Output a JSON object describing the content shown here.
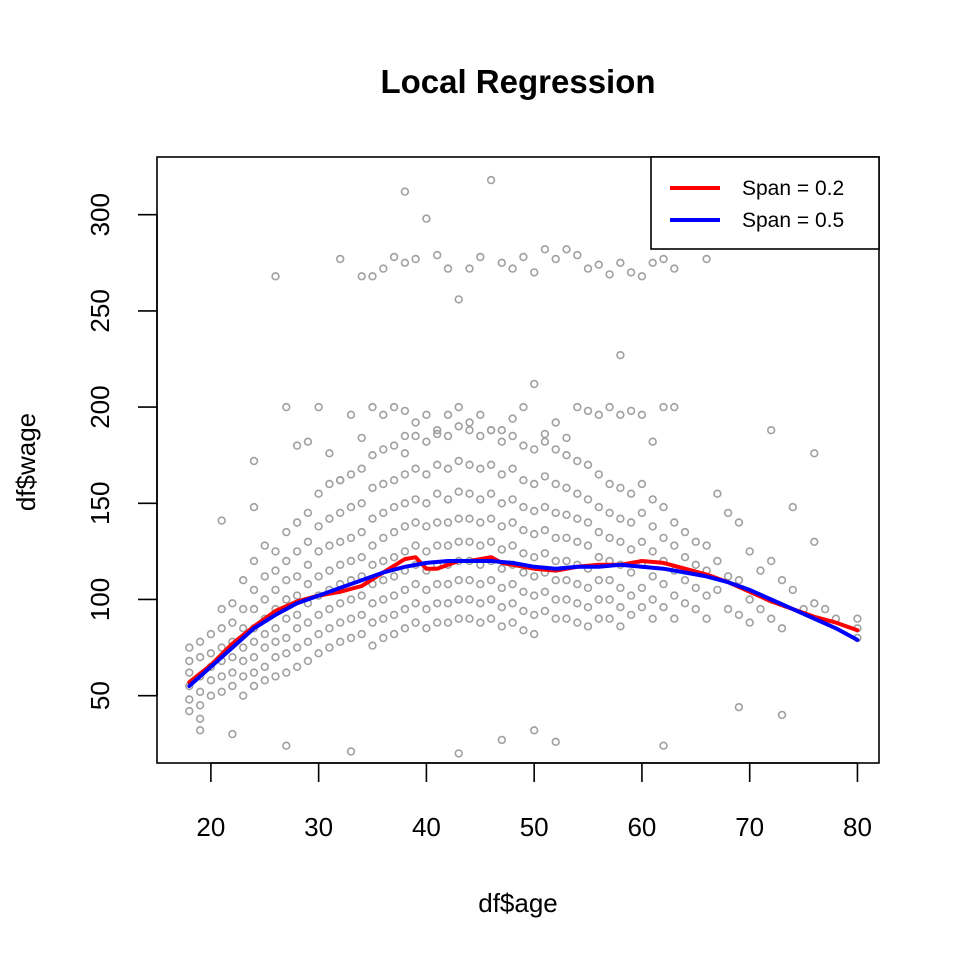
{
  "chart_data": {
    "type": "scatter",
    "title": "Local Regression",
    "xlabel": "df$age",
    "ylabel": "df$wage",
    "xlim": [
      15,
      82
    ],
    "ylim": [
      15,
      330
    ],
    "x_ticks": [
      20,
      30,
      40,
      50,
      60,
      70,
      80
    ],
    "y_ticks": [
      50,
      100,
      150,
      200,
      250,
      300
    ],
    "grid": false,
    "legend_position": "top-right",
    "point_color": "#a0a0a0",
    "series": [
      {
        "name": "Span = 0.2",
        "type": "line",
        "color": "#ff0000",
        "x": [
          18,
          20,
          22,
          24,
          26,
          28,
          30,
          32,
          34,
          36,
          38,
          39,
          40,
          41,
          42,
          43,
          44,
          45,
          46,
          47,
          48,
          50,
          52,
          54,
          56,
          58,
          60,
          62,
          64,
          66,
          68,
          70,
          72,
          74,
          76,
          78,
          80
        ],
        "y": [
          57,
          66,
          77,
          86,
          94,
          99,
          102,
          104,
          107,
          114,
          121,
          122,
          116,
          116,
          118,
          120,
          120,
          121,
          122,
          119,
          118,
          116,
          115,
          117,
          118,
          118,
          120,
          119,
          116,
          113,
          109,
          104,
          99,
          95,
          91,
          88,
          84
        ]
      },
      {
        "name": "Span = 0.5",
        "type": "line",
        "color": "#0000ff",
        "x": [
          18,
          20,
          22,
          24,
          26,
          28,
          30,
          32,
          34,
          36,
          38,
          40,
          42,
          44,
          46,
          48,
          50,
          52,
          54,
          56,
          58,
          60,
          62,
          64,
          66,
          68,
          70,
          72,
          74,
          76,
          78,
          80
        ],
        "y": [
          55,
          65,
          75,
          85,
          92,
          98,
          102,
          106,
          110,
          114,
          117,
          119,
          120,
          120,
          120,
          119,
          117,
          116,
          117,
          117,
          118,
          117,
          116,
          114,
          112,
          109,
          105,
          100,
          95,
          90,
          85,
          79
        ]
      }
    ],
    "scatter_points": {
      "x": [
        18,
        18,
        18,
        18,
        18,
        18,
        19,
        19,
        19,
        19,
        19,
        19,
        20,
        20,
        20,
        20,
        20,
        21,
        21,
        21,
        21,
        21,
        21,
        22,
        22,
        22,
        22,
        22,
        22,
        23,
        23,
        23,
        23,
        23,
        23,
        23,
        24,
        24,
        24,
        24,
        24,
        24,
        24,
        24,
        25,
        25,
        25,
        25,
        25,
        25,
        25,
        25,
        26,
        26,
        26,
        26,
        26,
        26,
        26,
        26,
        27,
        27,
        27,
        27,
        27,
        27,
        27,
        27,
        28,
        28,
        28,
        28,
        28,
        28,
        28,
        28,
        29,
        29,
        29,
        29,
        29,
        29,
        29,
        29,
        30,
        30,
        30,
        30,
        30,
        30,
        30,
        30,
        31,
        31,
        31,
        31,
        31,
        31,
        31,
        31,
        32,
        32,
        32,
        32,
        32,
        32,
        32,
        32,
        33,
        33,
        33,
        33,
        33,
        33,
        33,
        33,
        34,
        34,
        34,
        34,
        34,
        34,
        34,
        34,
        35,
        35,
        35,
        35,
        35,
        35,
        35,
        35,
        35,
        36,
        36,
        36,
        36,
        36,
        36,
        36,
        36,
        36,
        37,
        37,
        37,
        37,
        37,
        37,
        37,
        37,
        37,
        38,
        38,
        38,
        38,
        38,
        38,
        38,
        38,
        38,
        39,
        39,
        39,
        39,
        39,
        39,
        39,
        39,
        39,
        40,
        40,
        40,
        40,
        40,
        40,
        40,
        40,
        40,
        41,
        41,
        41,
        41,
        41,
        41,
        41,
        41,
        41,
        42,
        42,
        42,
        42,
        42,
        42,
        42,
        42,
        42,
        43,
        43,
        43,
        43,
        43,
        43,
        43,
        43,
        43,
        44,
        44,
        44,
        44,
        44,
        44,
        44,
        44,
        44,
        45,
        45,
        45,
        45,
        45,
        45,
        45,
        45,
        45,
        46,
        46,
        46,
        46,
        46,
        46,
        46,
        46,
        46,
        47,
        47,
        47,
        47,
        47,
        47,
        47,
        47,
        47,
        48,
        48,
        48,
        48,
        48,
        48,
        48,
        48,
        48,
        49,
        49,
        49,
        49,
        49,
        49,
        49,
        49,
        49,
        50,
        50,
        50,
        50,
        50,
        50,
        50,
        50,
        50,
        51,
        51,
        51,
        51,
        51,
        51,
        51,
        51,
        52,
        52,
        52,
        52,
        52,
        52,
        52,
        52,
        53,
        53,
        53,
        53,
        53,
        53,
        53,
        53,
        54,
        54,
        54,
        54,
        54,
        54,
        54,
        54,
        55,
        55,
        55,
        55,
        55,
        55,
        55,
        55,
        56,
        56,
        56,
        56,
        56,
        56,
        56,
        57,
        57,
        57,
        57,
        57,
        57,
        57,
        58,
        58,
        58,
        58,
        58,
        58,
        58,
        59,
        59,
        59,
        59,
        59,
        59,
        60,
        60,
        60,
        60,
        60,
        60,
        61,
        61,
        61,
        61,
        61,
        61,
        62,
        62,
        62,
        62,
        62,
        63,
        63,
        63,
        63,
        63,
        64,
        64,
        64,
        64,
        65,
        65,
        65,
        65,
        66,
        66,
        66,
        66,
        67,
        67,
        67,
        68,
        68,
        68,
        69,
        69,
        69,
        70,
        70,
        70,
        71,
        71,
        72,
        72,
        73,
        73,
        74,
        74,
        75,
        76,
        76,
        77,
        78,
        80,
        80,
        80,
        21,
        24,
        26,
        27,
        28,
        29,
        30,
        31,
        32,
        33,
        34,
        35,
        36,
        37,
        38,
        38,
        39,
        40,
        41,
        42,
        43,
        44,
        45,
        46,
        47,
        48,
        49,
        50,
        51,
        52,
        53,
        54,
        55,
        56,
        57,
        58,
        59,
        60,
        61,
        62,
        63,
        32,
        34,
        35,
        36,
        37,
        38,
        38,
        39,
        40,
        41,
        42,
        43,
        44,
        45,
        46,
        47,
        48,
        49,
        50,
        51,
        52,
        53,
        54,
        55,
        56,
        57,
        58,
        59,
        60,
        61,
        62,
        63,
        66,
        72,
        76,
        24,
        50,
        58,
        19,
        22,
        27,
        33,
        43,
        47,
        52,
        62,
        69,
        73
      ],
      "y": [
        75,
        68,
        62,
        55,
        48,
        42,
        78,
        70,
        60,
        52,
        45,
        38,
        82,
        72,
        65,
        58,
        50,
        95,
        85,
        75,
        68,
        60,
        52,
        98,
        88,
        78,
        70,
        62,
        55,
        110,
        95,
        85,
        75,
        68,
        60,
        50,
        120,
        105,
        95,
        85,
        78,
        70,
        62,
        55,
        128,
        112,
        100,
        90,
        82,
        75,
        65,
        58,
        125,
        115,
        105,
        95,
        85,
        78,
        70,
        60,
        135,
        120,
        110,
        100,
        90,
        80,
        72,
        62,
        140,
        125,
        112,
        102,
        92,
        85,
        75,
        65,
        145,
        130,
        118,
        108,
        98,
        88,
        78,
        68,
        155,
        138,
        125,
        112,
        102,
        92,
        82,
        72,
        160,
        142,
        128,
        115,
        105,
        95,
        85,
        75,
        162,
        145,
        130,
        118,
        108,
        98,
        88,
        78,
        165,
        148,
        132,
        120,
        110,
        100,
        90,
        80,
        168,
        150,
        135,
        122,
        112,
        102,
        92,
        82,
        175,
        158,
        142,
        128,
        118,
        108,
        98,
        88,
        76,
        178,
        160,
        145,
        132,
        120,
        110,
        100,
        90,
        80,
        180,
        162,
        148,
        135,
        122,
        112,
        102,
        92,
        82,
        185,
        165,
        150,
        138,
        125,
        115,
        105,
        95,
        85,
        185,
        168,
        152,
        140,
        128,
        118,
        108,
        98,
        88,
        182,
        165,
        150,
        138,
        125,
        115,
        105,
        95,
        85,
        188,
        170,
        155,
        140,
        128,
        118,
        108,
        98,
        88,
        185,
        168,
        152,
        140,
        128,
        118,
        108,
        98,
        88,
        190,
        172,
        156,
        142,
        130,
        120,
        110,
        100,
        90,
        188,
        170,
        155,
        142,
        130,
        120,
        110,
        100,
        90,
        185,
        168,
        152,
        140,
        128,
        118,
        108,
        98,
        88,
        188,
        170,
        155,
        142,
        130,
        120,
        110,
        100,
        90,
        182,
        165,
        150,
        138,
        126,
        116,
        106,
        96,
        86,
        185,
        168,
        152,
        140,
        128,
        118,
        108,
        98,
        88,
        180,
        162,
        148,
        136,
        124,
        114,
        104,
        94,
        84,
        178,
        160,
        146,
        134,
        122,
        112,
        102,
        92,
        82,
        182,
        164,
        148,
        136,
        124,
        114,
        104,
        94,
        178,
        160,
        145,
        132,
        120,
        110,
        100,
        90,
        175,
        158,
        144,
        132,
        120,
        110,
        100,
        90,
        172,
        155,
        142,
        130,
        118,
        108,
        98,
        88,
        170,
        152,
        140,
        128,
        116,
        106,
        96,
        86,
        165,
        148,
        135,
        122,
        110,
        100,
        90,
        160,
        145,
        132,
        120,
        110,
        100,
        90,
        158,
        142,
        130,
        118,
        106,
        96,
        86,
        155,
        140,
        126,
        114,
        102,
        92,
        160,
        145,
        130,
        118,
        106,
        96,
        152,
        138,
        125,
        112,
        100,
        90,
        148,
        132,
        120,
        108,
        96,
        140,
        128,
        115,
        102,
        90,
        135,
        122,
        110,
        98,
        130,
        118,
        106,
        95,
        128,
        115,
        102,
        90,
        155,
        120,
        105,
        145,
        112,
        95,
        140,
        110,
        92,
        125,
        100,
        88,
        115,
        95,
        120,
        90,
        110,
        85,
        148,
        105,
        95,
        130,
        98,
        95,
        90,
        85,
        90,
        80,
        141,
        148,
        268,
        200,
        180,
        182,
        200,
        176,
        162,
        196,
        184,
        200,
        196,
        200,
        198,
        176,
        192,
        196,
        186,
        196,
        200,
        192,
        196,
        188,
        188,
        194,
        200,
        212,
        186,
        192,
        184,
        200,
        198,
        196,
        200,
        196,
        198,
        196,
        182,
        200,
        200,
        277,
        268,
        268,
        272,
        278,
        275,
        312,
        277,
        298,
        279,
        272,
        256,
        272,
        278,
        318,
        275,
        272,
        278,
        270,
        282,
        277,
        282,
        279,
        272,
        274,
        269,
        275,
        270,
        268,
        275,
        277,
        272,
        277,
        188,
        176,
        172,
        32,
        227,
        32,
        30,
        24,
        21,
        20,
        27,
        26,
        24,
        44,
        40
      ],
      "marker": "open-circle"
    }
  }
}
